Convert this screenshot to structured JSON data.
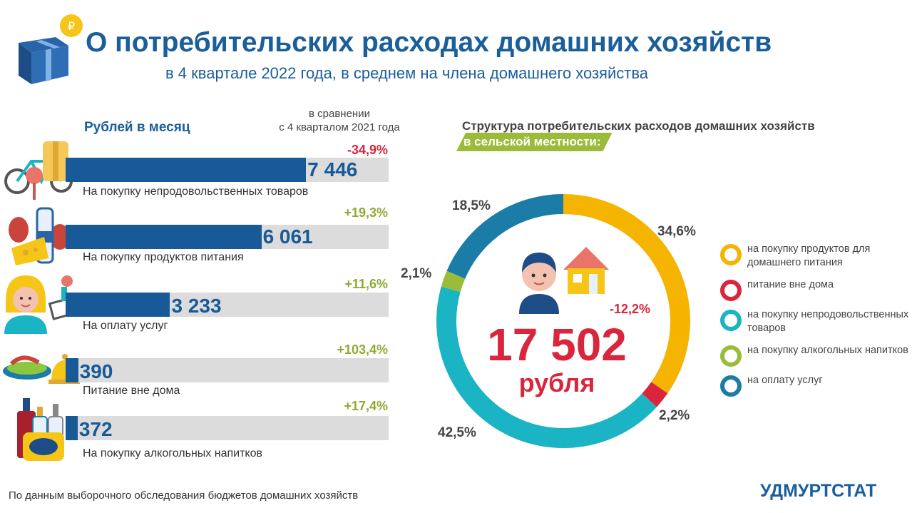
{
  "header": {
    "title": "О потребительских расходах домашних хозяйств",
    "subtitle": "в 4 квартале 2022 года, в среднем на члена домашнего хозяйства"
  },
  "left_panel": {
    "heading": "Рублей в месяц",
    "compare_line1": "в сравнении",
    "compare_line2": "с 4 кварталом 2021 года",
    "colors": {
      "bar": "#175a97",
      "track": "#dcdcdc",
      "increase": "#8dab34",
      "decrease": "#d9263c"
    },
    "max_value": 10000
  },
  "right_panel": {
    "heading": "Структура потребительских расходов домашних хозяйств",
    "tag": "в сельской местности:",
    "total": "17 502",
    "unit": "рубля",
    "change": "-12,2%"
  },
  "legend": [
    {
      "label": "на покупку  продуктов для домашнего питания",
      "color": "#f5b400"
    },
    {
      "label": "питание  вне дома",
      "color": "#d9263c"
    },
    {
      "label": "на покупку непродовольственных  товаров",
      "color": "#1ab4c4"
    },
    {
      "label": "на покупку  алкогольных напитков",
      "color": "#9bbb3b"
    },
    {
      "label": "на оплату  услуг",
      "color": "#1b7ca8"
    }
  ],
  "chart_data": [
    {
      "type": "bar",
      "title": "Рублей в месяц",
      "categories": [
        "На покупку  непродовольственных товаров",
        "На покупку  продуктов питания",
        "На оплату  услуг",
        "Питание  вне дома",
        "На покупку  алкогольных напитков"
      ],
      "values": [
        7446,
        6061,
        3233,
        390,
        372
      ],
      "value_labels": [
        "7 446",
        "6 061",
        "3 233",
        "390",
        "372"
      ],
      "changes": [
        "-34,9%",
        "+19,3%",
        "+11,6%",
        "+103,4%",
        "+17,4%"
      ],
      "change_values": [
        -34.9,
        19.3,
        11.6,
        103.4,
        17.4
      ],
      "orientation": "horizontal"
    },
    {
      "type": "pie",
      "title": "Структура потребительских расходов домашних хозяйств",
      "subtitle": "в сельской местности:",
      "categories": [
        "на покупку  продуктов для домашнего питания",
        "питание  вне дома",
        "на покупку непродовольственных  товаров",
        "на покупку  алкогольных напитков",
        "на оплату  услуг"
      ],
      "values": [
        34.6,
        2.2,
        42.5,
        2.1,
        18.5
      ],
      "value_labels": [
        "34,6%",
        "2,2%",
        "42,5%",
        "2,1%",
        "18,5%"
      ],
      "colors": [
        "#f5b400",
        "#d9263c",
        "#1ab4c4",
        "#9bbb3b",
        "#1b7ca8"
      ],
      "donut": true,
      "start": "top",
      "direction": "clockwise"
    }
  ],
  "footer": {
    "source": "По данным выборочного обследования бюджетов домашних хозяйств",
    "org": "УДМУРТСТАТ"
  }
}
